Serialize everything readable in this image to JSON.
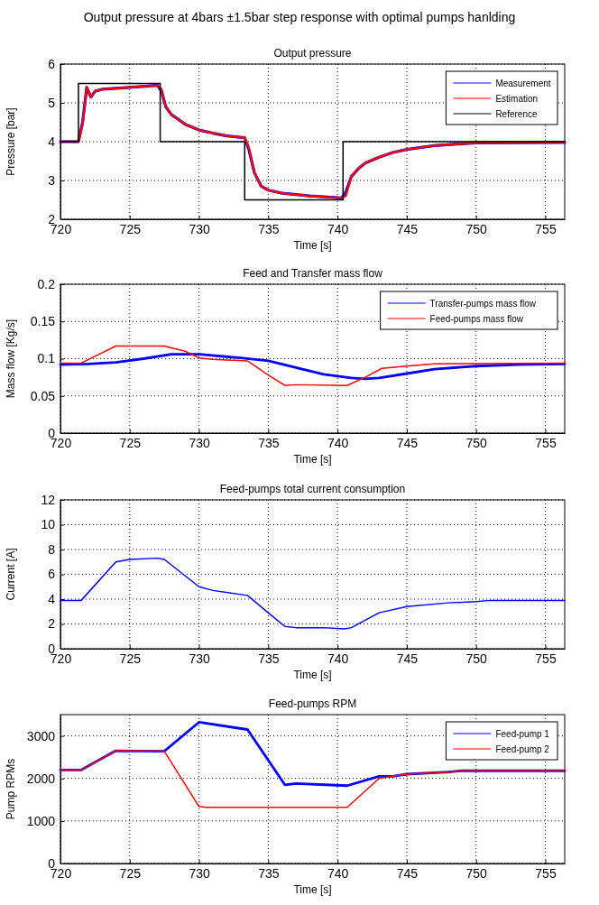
{
  "chart_data": [
    {
      "type": "line",
      "title": "Output pressure at 4bars ±1.5bar step response with optimal pumps hanlding",
      "subtitle": "Output pressure",
      "xlabel": "Time [s]",
      "ylabel": "Pressure [bar]",
      "xlim": [
        720,
        756.4
      ],
      "xticks": [
        720,
        725,
        730,
        735,
        740,
        745,
        750,
        755
      ],
      "ylim": [
        2,
        6
      ],
      "yticks": [
        2,
        3,
        4,
        5,
        6
      ],
      "grid": true,
      "legend": "top right",
      "line_style": "solid",
      "marker": "none",
      "series": [
        {
          "name": "Measurement",
          "color": "#0000ff",
          "x": [
            720,
            721.3,
            721.6,
            721.9,
            722.2,
            722.5,
            723,
            725,
            727,
            727.3,
            727.6,
            728,
            729,
            730,
            731,
            732,
            733.3,
            733.6,
            734,
            734.5,
            735,
            736,
            738,
            740.3,
            740.6,
            741,
            741.5,
            742,
            743,
            744,
            745,
            747,
            750,
            756.4
          ],
          "values": [
            4,
            4,
            4.5,
            5.4,
            5.15,
            5.3,
            5.35,
            5.4,
            5.45,
            5.3,
            4.9,
            4.7,
            4.45,
            4.3,
            4.22,
            4.15,
            4.1,
            3.8,
            3.2,
            2.85,
            2.75,
            2.67,
            2.6,
            2.55,
            2.7,
            3.1,
            3.3,
            3.45,
            3.6,
            3.72,
            3.8,
            3.9,
            3.97,
            3.98
          ]
        },
        {
          "name": "Estimation",
          "color": "#ff0000",
          "x": [
            720,
            721.3,
            721.6,
            721.9,
            722.2,
            722.5,
            723,
            725,
            727,
            727.3,
            727.6,
            728,
            729,
            730,
            731,
            732,
            733.3,
            733.6,
            734,
            734.5,
            735,
            736,
            738,
            740.3,
            740.6,
            741,
            741.5,
            742,
            743,
            744,
            745,
            747,
            750,
            756.4
          ],
          "values": [
            4,
            4,
            4.45,
            5.4,
            5.15,
            5.3,
            5.35,
            5.4,
            5.45,
            5.35,
            4.9,
            4.7,
            4.45,
            4.3,
            4.22,
            4.15,
            4.1,
            3.85,
            3.2,
            2.85,
            2.75,
            2.67,
            2.6,
            2.55,
            2.6,
            3.1,
            3.3,
            3.45,
            3.6,
            3.72,
            3.8,
            3.9,
            3.97,
            3.98
          ]
        },
        {
          "name": "Reference",
          "color": "#000000",
          "x": [
            720,
            721.3,
            721.3,
            727.2,
            727.2,
            733.3,
            733.3,
            740.4,
            740.4,
            756.4
          ],
          "values": [
            4,
            4,
            5.5,
            5.5,
            4,
            4,
            2.5,
            2.5,
            4,
            4
          ]
        }
      ]
    },
    {
      "type": "line",
      "title": "Feed and Transfer mass flow",
      "xlabel": "Time [s]",
      "ylabel": "Mass flow [Kg/s]",
      "xlim": [
        720,
        756.4
      ],
      "xticks": [
        720,
        725,
        730,
        735,
        740,
        745,
        750,
        755
      ],
      "ylim": [
        0,
        0.2
      ],
      "yticks": [
        0,
        0.05,
        0.1,
        0.15,
        0.2
      ],
      "grid": true,
      "legend": "top right",
      "line_style": "solid",
      "marker": "none",
      "series": [
        {
          "name": "Transfer-pumps mass flow",
          "color": "#0000ff",
          "x": [
            720,
            722,
            724,
            726,
            728,
            730,
            733,
            735,
            737,
            739,
            741,
            742,
            743,
            745,
            747,
            750,
            753,
            756.4
          ],
          "values": [
            0.092,
            0.093,
            0.095,
            0.1,
            0.106,
            0.106,
            0.101,
            0.097,
            0.088,
            0.079,
            0.074,
            0.073,
            0.074,
            0.08,
            0.086,
            0.09,
            0.092,
            0.093
          ]
        },
        {
          "name": "Feed-pumps mass flow",
          "color": "#ff0000",
          "x": [
            720,
            721.5,
            724,
            727.5,
            729,
            730,
            731,
            733.5,
            735,
            736.2,
            737,
            740.7,
            742,
            743.2,
            745,
            747,
            756.4
          ],
          "values": [
            0.094,
            0.094,
            0.117,
            0.117,
            0.11,
            0.101,
            0.099,
            0.097,
            0.078,
            0.064,
            0.065,
            0.064,
            0.075,
            0.087,
            0.09,
            0.093,
            0.094
          ]
        }
      ]
    },
    {
      "type": "line",
      "title": "Feed-pumps total current consumption",
      "xlabel": "Time [s]",
      "ylabel": "Current [A]",
      "xlim": [
        720,
        756.4
      ],
      "xticks": [
        720,
        725,
        730,
        735,
        740,
        745,
        750,
        755
      ],
      "ylim": [
        0,
        12
      ],
      "yticks": [
        0,
        2,
        4,
        6,
        8,
        10,
        12
      ],
      "grid": true,
      "line_style": "solid",
      "marker": "none",
      "series": [
        {
          "color": "#0000ff",
          "x": [
            720,
            721.5,
            724,
            725,
            727,
            727.5,
            730,
            731,
            733.5,
            735,
            736.2,
            737,
            739,
            740.5,
            741,
            743,
            745,
            748,
            750,
            751,
            756.4
          ],
          "values": [
            3.9,
            3.9,
            7.0,
            7.2,
            7.3,
            7.2,
            5.0,
            4.7,
            4.3,
            2.9,
            1.8,
            1.7,
            1.7,
            1.6,
            1.7,
            2.9,
            3.4,
            3.7,
            3.8,
            3.9,
            3.9
          ]
        }
      ]
    },
    {
      "type": "line",
      "title": "Feed-pumps RPM",
      "xlabel": "Time [s]",
      "ylabel": "Pump RPMs",
      "xlim": [
        720,
        756.4
      ],
      "xticks": [
        720,
        725,
        730,
        735,
        740,
        745,
        750,
        755
      ],
      "ylim": [
        0,
        3500
      ],
      "yticks": [
        0,
        1000,
        2000,
        3000
      ],
      "grid": true,
      "legend": "top right",
      "line_style": "solid",
      "marker": "none",
      "series": [
        {
          "name": "Feed-pump 1",
          "color": "#0000ff",
          "x": [
            720,
            721.5,
            724,
            727.5,
            730,
            733.5,
            736.2,
            737,
            740.7,
            743,
            744,
            745,
            748,
            749,
            756.4
          ],
          "values": [
            2200,
            2200,
            2650,
            2640,
            3320,
            3150,
            1850,
            1880,
            1830,
            2050,
            2050,
            2100,
            2150,
            2180,
            2180
          ]
        },
        {
          "name": "Feed-pump 2",
          "color": "#ff0000",
          "x": [
            720,
            721.5,
            724,
            727.5,
            730,
            730.5,
            740.7,
            743,
            744,
            745,
            748,
            749,
            756.4
          ],
          "values": [
            2200,
            2200,
            2650,
            2640,
            1340,
            1320,
            1320,
            2000,
            2050,
            2100,
            2150,
            2180,
            2180
          ]
        }
      ]
    }
  ]
}
